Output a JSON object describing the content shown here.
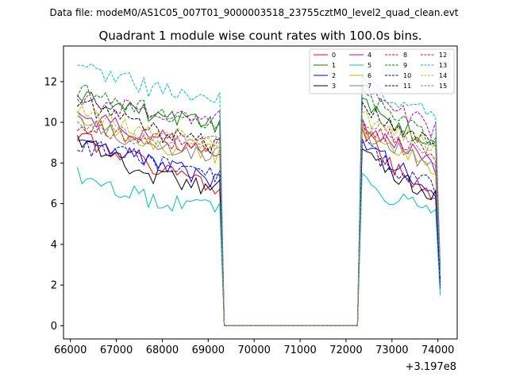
{
  "suptitle": "Data file: modeM0/AS1C05_007T01_9000003518_23755cztM0_level2_quad_clean.evt",
  "chart_data": {
    "type": "line",
    "title": "Quadrant 1 module wise count rates with 100.0s bins.",
    "xlabel": "",
    "ylabel": "",
    "x_offset_label": "+3.197e8",
    "xlim": [
      65850,
      74420
    ],
    "ylim": [
      -0.65,
      13.75
    ],
    "xticks": [
      66000,
      67000,
      68000,
      69000,
      70000,
      71000,
      72000,
      73000,
      74000
    ],
    "yticks": [
      0,
      2,
      4,
      6,
      8,
      10,
      12
    ],
    "segments": [
      {
        "x_start": 66150,
        "x_end": 69250,
        "n": 31
      },
      {
        "x_start": 72350,
        "x_end": 73950,
        "n": 17
      }
    ],
    "gap": {
      "x": [
        69350,
        72250
      ],
      "value": 0
    },
    "end_point": {
      "x": 74050
    },
    "legend_position": "top-right",
    "series": [
      {
        "name": "0",
        "color": "#ff0000",
        "dash": "solid",
        "seg1": [
          9.2,
          8.0,
          6.5
        ],
        "seg2": [
          9.5,
          7.5,
          6.5
        ],
        "end": 2.3,
        "seed": 1
      },
      {
        "name": "1",
        "color": "#008000",
        "dash": "solid",
        "seg1": [
          11.3,
          10.4,
          9.8
        ],
        "seg2": [
          11.0,
          9.8,
          8.8
        ],
        "end": 2.6,
        "seed": 2
      },
      {
        "name": "2",
        "color": "#0000ff",
        "dash": "solid",
        "seg1": [
          9.0,
          8.1,
          7.0
        ],
        "seg2": [
          9.0,
          7.8,
          6.6
        ],
        "end": 1.8,
        "seed": 3
      },
      {
        "name": "3",
        "color": "#000000",
        "dash": "solid",
        "seg1": [
          9.2,
          7.4,
          6.7
        ],
        "seg2": [
          8.5,
          7.3,
          6.5
        ],
        "end": 2.3,
        "seed": 4
      },
      {
        "name": "4",
        "color": "#bf00bf",
        "dash": "solid",
        "seg1": [
          10.3,
          9.4,
          8.3
        ],
        "seg2": [
          10.0,
          8.9,
          7.8
        ],
        "end": 2.4,
        "seed": 5
      },
      {
        "name": "5",
        "color": "#00bfbf",
        "dash": "solid",
        "seg1": [
          7.5,
          6.2,
          5.8
        ],
        "seg2": [
          7.3,
          6.1,
          5.6
        ],
        "end": 1.5,
        "seed": 6
      },
      {
        "name": "6",
        "color": "#bfbf00",
        "dash": "solid",
        "seg1": [
          10.2,
          9.0,
          8.4
        ],
        "seg2": [
          9.7,
          8.6,
          7.8
        ],
        "end": 2.4,
        "seed": 7
      },
      {
        "name": "7",
        "color": "#808080",
        "dash": "solid",
        "seg1": [
          9.9,
          8.9,
          8.4
        ],
        "seg2": [
          9.6,
          8.6,
          7.8
        ],
        "end": 2.4,
        "seed": 8
      },
      {
        "name": "8",
        "color": "#ff0000",
        "dash": "dashed",
        "seg1": [
          10.0,
          9.1,
          8.8
        ],
        "seg2": [
          9.9,
          9.1,
          8.5
        ],
        "end": 2.5,
        "seed": 9
      },
      {
        "name": "9",
        "color": "#008000",
        "dash": "dashed",
        "seg1": [
          11.6,
          10.6,
          9.8
        ],
        "seg2": [
          11.5,
          10.2,
          9.2
        ],
        "end": 2.8,
        "seed": 10
      },
      {
        "name": "10",
        "color": "#0000ff",
        "dash": "dashed",
        "seg1": [
          8.9,
          8.1,
          7.4
        ],
        "seg2": [
          8.8,
          7.6,
          6.9
        ],
        "end": 2.0,
        "seed": 11
      },
      {
        "name": "11",
        "color": "#000000",
        "dash": "dashed",
        "seg1": [
          11.0,
          9.6,
          8.8
        ],
        "seg2": [
          10.8,
          9.6,
          9.0
        ],
        "end": 2.7,
        "seed": 12
      },
      {
        "name": "12",
        "color": "#bf00bf",
        "dash": "dashed",
        "seg1": [
          11.3,
          10.5,
          10.2
        ],
        "seg2": [
          11.6,
          10.6,
          9.6
        ],
        "end": 2.7,
        "seed": 13
      },
      {
        "name": "13",
        "color": "#00bfbf",
        "dash": "dashed",
        "seg1": [
          12.9,
          11.7,
          11.0
        ],
        "seg2": [
          12.2,
          11.0,
          10.3
        ],
        "end": 3.0,
        "seed": 14
      },
      {
        "name": "14",
        "color": "#bfbf00",
        "dash": "dashed",
        "seg1": [
          10.5,
          9.6,
          8.9
        ],
        "seg2": [
          10.3,
          9.4,
          8.7
        ],
        "end": 2.5,
        "seed": 15
      },
      {
        "name": "15",
        "color": "#808080",
        "dash": "dashed",
        "seg1": [
          10.0,
          9.2,
          8.9
        ],
        "seg2": [
          10.0,
          9.2,
          8.8
        ],
        "end": 2.5,
        "seed": 16
      }
    ]
  }
}
